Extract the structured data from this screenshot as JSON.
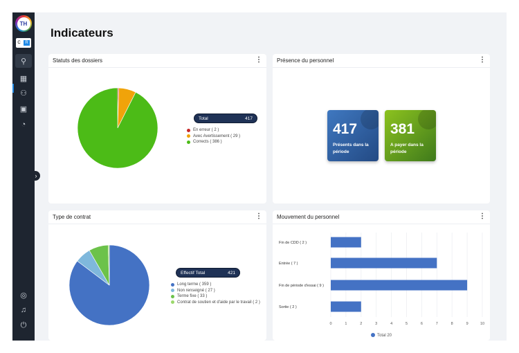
{
  "sidebar": {
    "logo": "TH",
    "toggle": [
      "C",
      "R"
    ],
    "items": [
      {
        "icon": "search-icon",
        "glyph": "⚲"
      },
      {
        "icon": "dashboard-icon",
        "glyph": "▦"
      },
      {
        "icon": "users-icon",
        "glyph": "⚇"
      },
      {
        "icon": "report-icon",
        "glyph": "▣"
      },
      {
        "icon": "chart-icon",
        "glyph": "◔"
      }
    ],
    "bottom": [
      {
        "icon": "user-icon",
        "glyph": "◎"
      },
      {
        "icon": "bell-icon",
        "glyph": "♫"
      },
      {
        "icon": "power-icon",
        "glyph": "⏻"
      }
    ]
  },
  "page": {
    "title": "Indicateurs"
  },
  "cards": {
    "statuts": {
      "title": "Statuts des dossiers",
      "total_label": "Total",
      "total": "417"
    },
    "presence": {
      "title": "Présence du personnel",
      "kpis": [
        {
          "value": "417",
          "label": "Présents dans la période",
          "color": "#2f5f9e"
        },
        {
          "value": "381",
          "label": "A payer dans la période",
          "color": "#5a9a1e"
        }
      ]
    },
    "contrat": {
      "title": "Type de contrat",
      "total_label": "Effectif Total",
      "total": "421"
    },
    "mouvement": {
      "title": "Mouvement du personnel",
      "legend": "Total 20"
    }
  },
  "chart_data": [
    {
      "type": "pie",
      "title": "Statuts des dossiers",
      "slices": [
        {
          "name": "En erreur",
          "value": 2,
          "label": "En erreur ( 2 )",
          "color": "#c62828"
        },
        {
          "name": "Avec Avertissement",
          "value": 29,
          "label": "Avec Avertissement ( 29 )",
          "color": "#f0a30a"
        },
        {
          "name": "Corrects",
          "value": 386,
          "label": "Corrects ( 386 )",
          "color": "#4cbb17"
        }
      ]
    },
    {
      "type": "pie",
      "title": "Type de contrat",
      "slices": [
        {
          "name": "Long terme",
          "value": 359,
          "label": "Long terme ( 359 )",
          "color": "#4472c4"
        },
        {
          "name": "Non renseigné",
          "value": 27,
          "label": "Non renseigné ( 27 )",
          "color": "#7fb8dc"
        },
        {
          "name": "Terme fixe",
          "value": 33,
          "label": "Terme fixe ( 33 )",
          "color": "#6cc24a"
        },
        {
          "name": "Contrat de soutien et d'aide par le travail",
          "value": 2,
          "label": "Contrat de soutien et d'aide par le travail ( 2 )",
          "color": "#9bd86b"
        }
      ]
    },
    {
      "type": "bar",
      "orientation": "horizontal",
      "categories": [
        "Fin de CDD ( 2 )",
        "Entrée ( 7 )",
        "Fin de période d'essai ( 9 )",
        "Sortie ( 2 )"
      ],
      "values": [
        2,
        7,
        9,
        2
      ],
      "xlim": [
        0,
        10
      ],
      "xticks": [
        "0",
        "1",
        "2",
        "3",
        "4",
        "5",
        "6",
        "7",
        "8",
        "9",
        "10"
      ],
      "grid": true,
      "color": "#4472c4",
      "legend": "bottom"
    }
  ]
}
